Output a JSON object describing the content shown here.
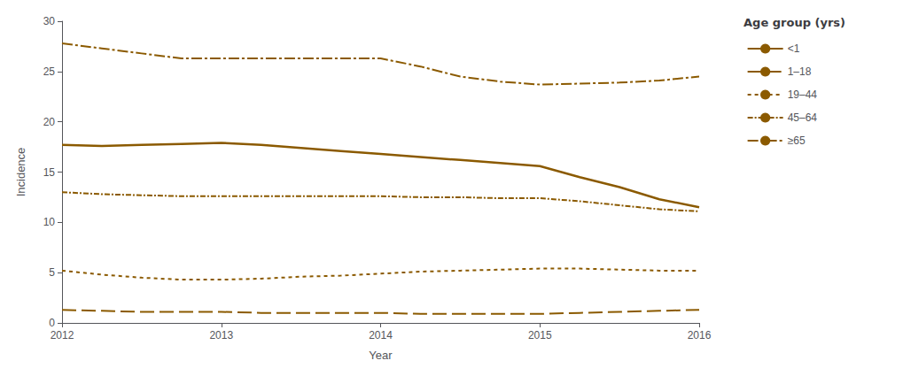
{
  "chart_data": {
    "type": "line",
    "xlabel": "Year",
    "ylabel": "Incidence",
    "legend_title": "Age group (yrs)",
    "legend": "right",
    "grid": false,
    "x": [
      2012,
      2012.25,
      2012.5,
      2012.75,
      2013,
      2013.25,
      2013.5,
      2013.75,
      2014,
      2014.25,
      2014.5,
      2014.75,
      2015,
      2015.25,
      2015.5,
      2015.75,
      2016
    ],
    "xlim": [
      2012,
      2016
    ],
    "xticks": [
      2012,
      2013,
      2014,
      2015,
      2016
    ],
    "ylim": [
      0,
      30
    ],
    "yticks": [
      0,
      5,
      10,
      15,
      20,
      25,
      30
    ],
    "series": [
      {
        "name": "<1",
        "color": "#8B5A00",
        "line_style": "solid",
        "values": [
          17.7,
          17.6,
          17.7,
          17.8,
          17.9,
          17.7,
          17.4,
          17.1,
          16.8,
          16.5,
          16.2,
          15.9,
          15.6,
          14.5,
          13.5,
          12.3,
          11.5
        ]
      },
      {
        "name": "1–18",
        "color": "#8B5A00",
        "line_style": "dashed",
        "values": [
          1.3,
          1.2,
          1.1,
          1.1,
          1.1,
          1.0,
          1.0,
          1.0,
          1.0,
          0.9,
          0.9,
          0.9,
          0.9,
          1.0,
          1.1,
          1.2,
          1.3
        ]
      },
      {
        "name": "19–44",
        "color": "#8B5A00",
        "line_style": "dotted",
        "values": [
          5.2,
          4.8,
          4.5,
          4.3,
          4.3,
          4.4,
          4.6,
          4.7,
          4.9,
          5.1,
          5.2,
          5.3,
          5.4,
          5.4,
          5.3,
          5.2,
          5.2
        ]
      },
      {
        "name": "45–64",
        "color": "#8B5A00",
        "line_style": "dashdot",
        "values": [
          13.0,
          12.8,
          12.7,
          12.6,
          12.6,
          12.6,
          12.6,
          12.6,
          12.6,
          12.5,
          12.5,
          12.4,
          12.4,
          12.1,
          11.7,
          11.3,
          11.1
        ]
      },
      {
        "name": "≥65",
        "color": "#8B5A00",
        "line_style": "longdashdot",
        "values": [
          27.8,
          27.3,
          26.8,
          26.3,
          26.3,
          26.3,
          26.3,
          26.3,
          26.3,
          25.5,
          24.5,
          24.0,
          23.7,
          23.8,
          23.9,
          24.1,
          24.5
        ]
      }
    ]
  }
}
